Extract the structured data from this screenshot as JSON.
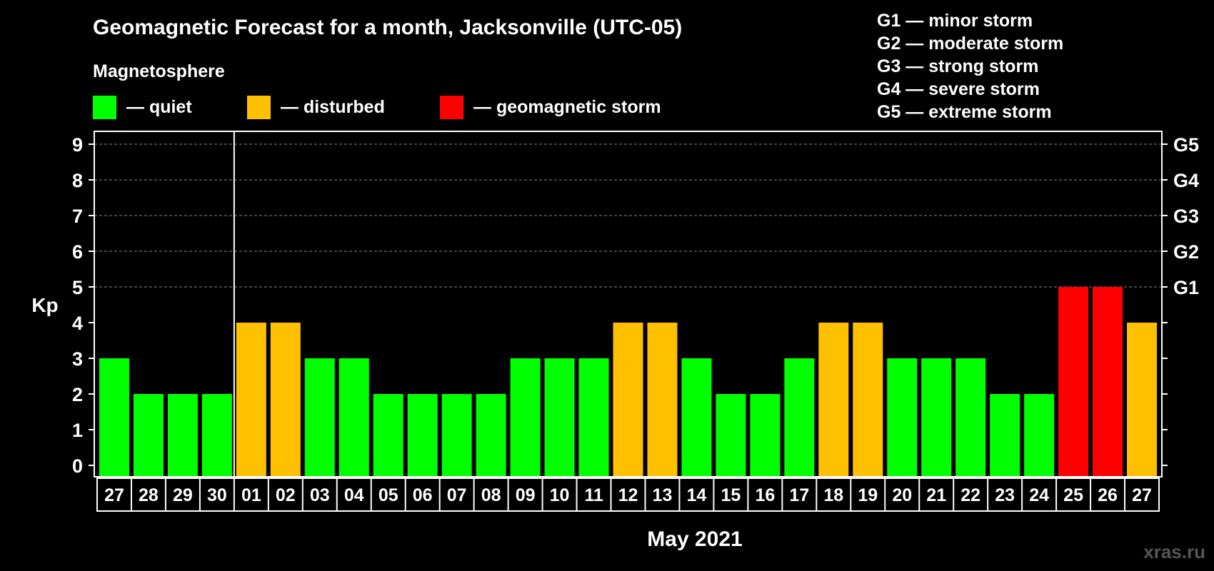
{
  "chart_data": {
    "type": "bar",
    "title": "Geomagnetic Forecast for a month, Jacksonville (UTC-05)",
    "subtitle": "Magnetosphere",
    "legend": [
      {
        "label": "— quiet",
        "color": "#00ff00"
      },
      {
        "label": "— disturbed",
        "color": "#ffc000"
      },
      {
        "label": "— geomagnetic storm",
        "color": "#ff0000"
      }
    ],
    "storm_scale": [
      "G1 — minor storm",
      "G2 — moderate storm",
      "G3 — strong storm",
      "G4 — severe storm",
      "G5 — extreme storm"
    ],
    "ylabel": "Kp",
    "xlabel": "May 2021",
    "ylim": [
      0,
      9
    ],
    "yticks": [
      "0",
      "1",
      "2",
      "3",
      "4",
      "5",
      "6",
      "7",
      "8",
      "9"
    ],
    "right_labels": [
      {
        "value": 5,
        "label": "G1"
      },
      {
        "value": 6,
        "label": "G2"
      },
      {
        "value": 7,
        "label": "G3"
      },
      {
        "value": 8,
        "label": "G4"
      },
      {
        "value": 9,
        "label": "G5"
      }
    ],
    "grid": true,
    "categories": [
      "27",
      "28",
      "29",
      "30",
      "01",
      "02",
      "03",
      "04",
      "05",
      "06",
      "07",
      "08",
      "09",
      "10",
      "11",
      "12",
      "13",
      "14",
      "15",
      "16",
      "17",
      "18",
      "19",
      "20",
      "21",
      "22",
      "23",
      "24",
      "25",
      "26",
      "27"
    ],
    "values": [
      3,
      2,
      2,
      2,
      4,
      4,
      3,
      3,
      2,
      2,
      2,
      2,
      3,
      3,
      3,
      4,
      4,
      3,
      2,
      2,
      3,
      4,
      4,
      3,
      3,
      3,
      2,
      2,
      5,
      5,
      4
    ],
    "month_divider_after": "30",
    "thresholds": {
      "quiet_max": 3,
      "disturbed_max": 4
    },
    "watermark": "xras.ru"
  }
}
